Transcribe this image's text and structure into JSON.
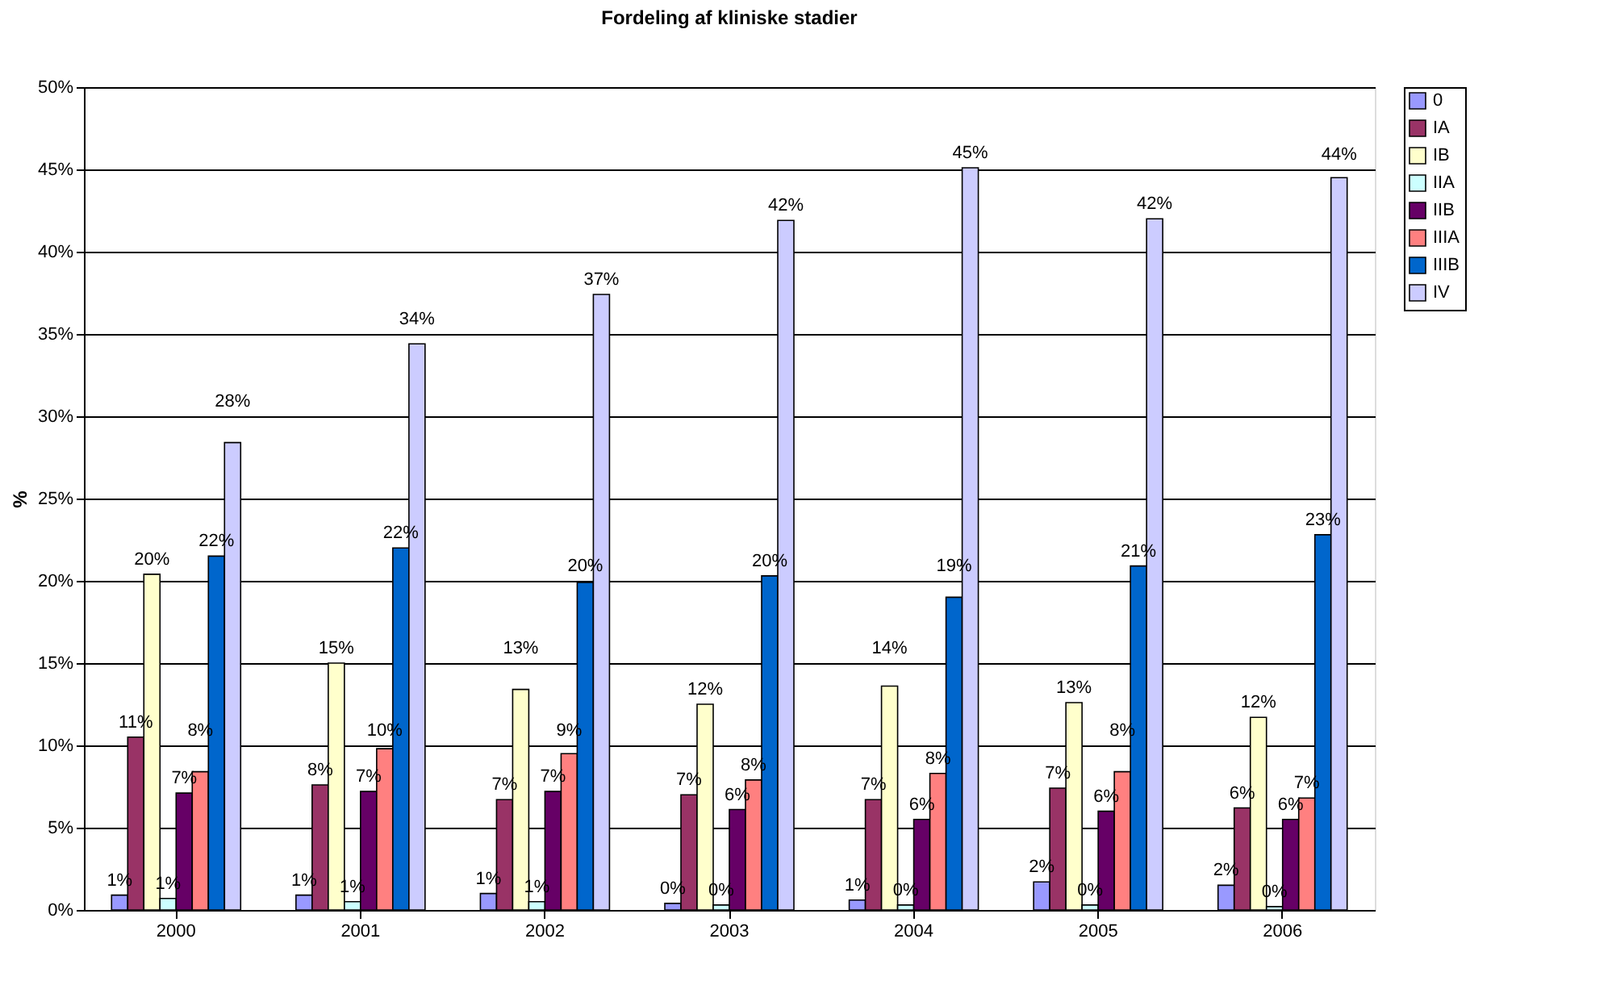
{
  "chart_data": {
    "type": "bar",
    "title": "Fordeling af kliniske stadier",
    "ylabel": "%",
    "categories": [
      "2000",
      "2001",
      "2002",
      "2003",
      "2004",
      "2005",
      "2006"
    ],
    "series": [
      {
        "name": "0",
        "color": "#9999ff",
        "values": [
          0.9,
          0.9,
          1.0,
          0.4,
          0.6,
          1.7,
          1.5
        ],
        "value_labels": [
          "1%",
          "1%",
          "1%",
          "0%",
          "1%",
          "2%",
          "2%"
        ]
      },
      {
        "name": "IA",
        "color": "#993366",
        "values": [
          10.5,
          7.6,
          6.7,
          7.0,
          6.7,
          7.4,
          6.2
        ],
        "value_labels": [
          "11%",
          "8%",
          "7%",
          "7%",
          "7%",
          "7%",
          "6%"
        ]
      },
      {
        "name": "IB",
        "color": "#ffffcc",
        "values": [
          20.4,
          15.0,
          13.4,
          12.5,
          13.6,
          12.6,
          11.7
        ],
        "value_labels": [
          "20%",
          "15%",
          "13%",
          "12%",
          "14%",
          "13%",
          "12%"
        ]
      },
      {
        "name": "IIA",
        "color": "#ccffff",
        "values": [
          0.7,
          0.5,
          0.5,
          0.3,
          0.3,
          0.3,
          0.2
        ],
        "value_labels": [
          "1%",
          "1%",
          "1%",
          "0%",
          "0%",
          "0%",
          "0%"
        ]
      },
      {
        "name": "IIB",
        "color": "#660066",
        "values": [
          7.1,
          7.2,
          7.2,
          6.1,
          5.5,
          6.0,
          5.5
        ],
        "value_labels": [
          "7%",
          "7%",
          "7%",
          "6%",
          "6%",
          "6%",
          "6%"
        ]
      },
      {
        "name": "IIIA",
        "color": "#ff8080",
        "values": [
          8.4,
          9.8,
          9.5,
          7.9,
          8.3,
          8.4,
          6.8
        ],
        "value_labels": [
          "8%",
          "10%",
          "9%",
          "8%",
          "8%",
          "8%",
          "7%"
        ]
      },
      {
        "name": "IIIB",
        "color": "#0066cc",
        "values": [
          21.5,
          22.0,
          19.9,
          20.3,
          19.0,
          20.9,
          22.8
        ],
        "value_labels": [
          "22%",
          "22%",
          "20%",
          "20%",
          "19%",
          "21%",
          "23%"
        ]
      },
      {
        "name": "IV",
        "color": "#ccccff",
        "values": [
          28.4,
          34.4,
          37.4,
          41.9,
          45.1,
          42.0,
          44.5
        ],
        "value_labels": [
          "28%",
          "34%",
          "37%",
          "42%",
          "45%",
          "42%",
          "44%"
        ]
      }
    ],
    "ylim": [
      0,
      50
    ],
    "yticks": [
      {
        "value": 0,
        "label": "0%"
      },
      {
        "value": 5,
        "label": "5%"
      },
      {
        "value": 10,
        "label": "10%"
      },
      {
        "value": 15,
        "label": "15%"
      },
      {
        "value": 20,
        "label": "20%"
      },
      {
        "value": 25,
        "label": "25%"
      },
      {
        "value": 30,
        "label": "30%"
      },
      {
        "value": 35,
        "label": "35%"
      },
      {
        "value": 40,
        "label": "40%"
      },
      {
        "value": 45,
        "label": "45%"
      },
      {
        "value": 50,
        "label": "50%"
      }
    ],
    "grid": "y",
    "legend": "right"
  }
}
